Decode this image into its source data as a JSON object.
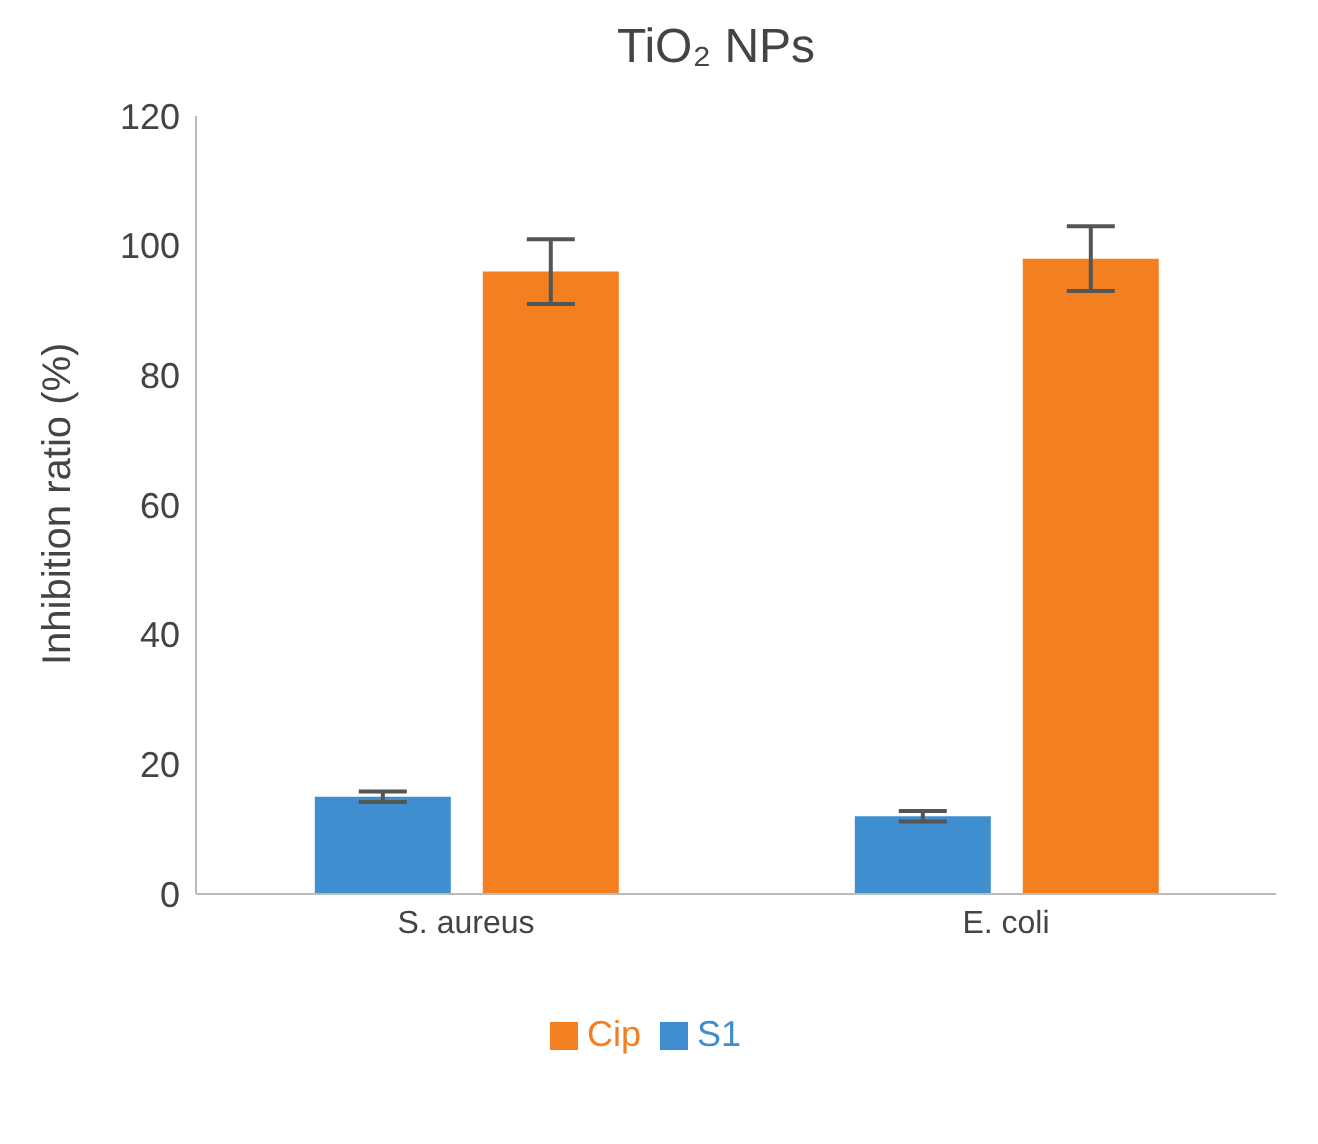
{
  "chart_data": {
    "type": "bar",
    "title": "TiO₂ NPs",
    "ylabel": "Inhibition ratio (%)",
    "categories": [
      "S. aureus",
      "E. coli"
    ],
    "series": [
      {
        "name": "S1",
        "color": "#3f8fd0",
        "values": [
          15,
          12
        ],
        "errors": [
          0.8,
          0.8
        ]
      },
      {
        "name": "Cip",
        "color": "#f47f20",
        "values": [
          96,
          98
        ],
        "errors": [
          5,
          5
        ]
      }
    ],
    "ylim": [
      0,
      120
    ],
    "yticks": [
      0,
      20,
      40,
      60,
      80,
      100,
      120
    ],
    "grid": false,
    "legend": "bottom"
  }
}
